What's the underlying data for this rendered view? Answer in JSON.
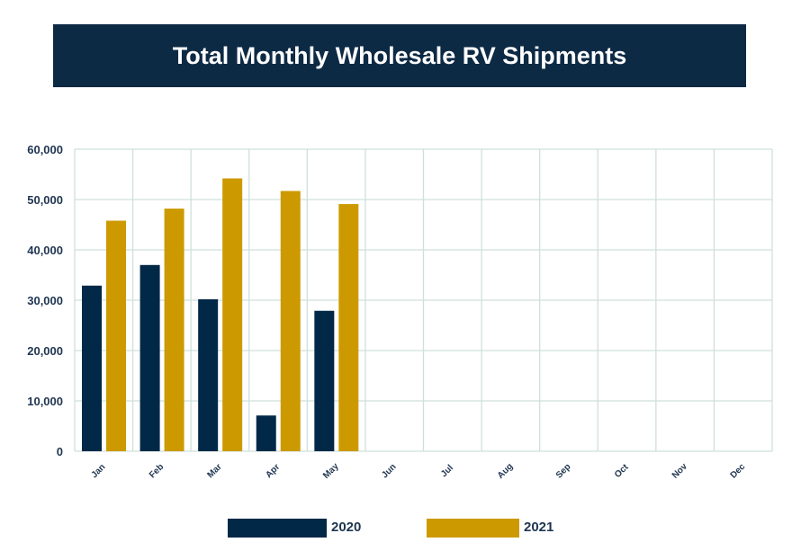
{
  "chart_data": {
    "type": "bar",
    "title": "Total Monthly Wholesale RV Shipments",
    "categories": [
      "Jan",
      "Feb",
      "Mar",
      "Apr",
      "May",
      "Jun",
      "Jul",
      "Aug",
      "Sep",
      "Oct",
      "Nov",
      "Dec"
    ],
    "series": [
      {
        "name": "2020",
        "color": "#022847",
        "values": [
          32900,
          37000,
          30200,
          7100,
          27900,
          null,
          null,
          null,
          null,
          null,
          null,
          null
        ]
      },
      {
        "name": "2021",
        "color": "#cc9a00",
        "values": [
          45800,
          48200,
          54200,
          51700,
          49100,
          null,
          null,
          null,
          null,
          null,
          null,
          null
        ]
      }
    ],
    "yticks": [
      "0",
      "10,000",
      "20,000",
      "30,000",
      "40,000",
      "50,000",
      "60,000"
    ],
    "ylim": [
      0,
      60000
    ],
    "grid": true,
    "legend_position": "bottom"
  },
  "colors": {
    "title_bg": "#0d2a45",
    "grid": "#cfe0dc",
    "axis_text": "#1f3550"
  }
}
